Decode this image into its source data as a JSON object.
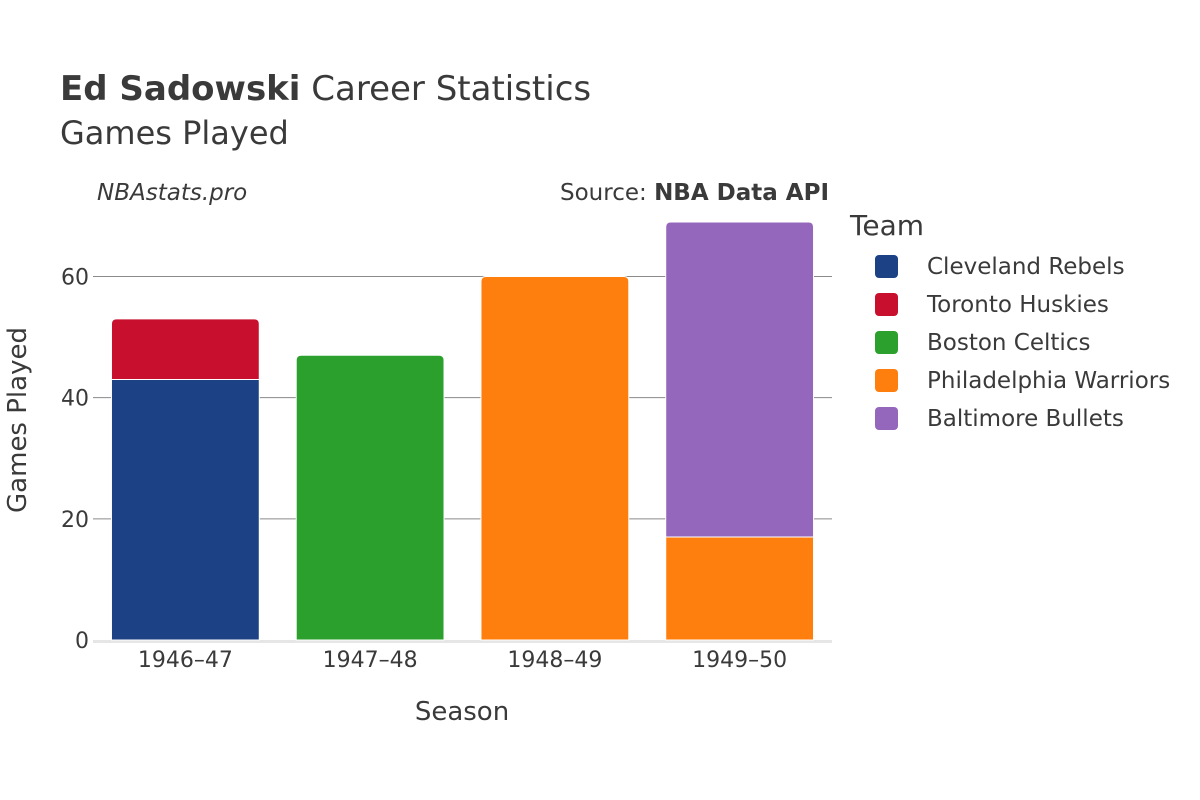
{
  "header": {
    "player_name": "Ed Sadowski",
    "title_rest": " Career Statistics",
    "subtitle": "Games Played"
  },
  "credits": {
    "site": "NBAstats.pro",
    "source_prefix": "Source: ",
    "source_name": "NBA Data API"
  },
  "legend": {
    "title": "Team"
  },
  "chart_data": {
    "type": "bar",
    "stacked": true,
    "categories": [
      "1946–47",
      "1947–48",
      "1948–49",
      "1949–50"
    ],
    "xlabel": "Season",
    "ylabel": "Games Played",
    "ylim": [
      0,
      69
    ],
    "yticks": [
      0,
      20,
      40,
      60
    ],
    "grid": true,
    "legend_position": "right",
    "series": [
      {
        "name": "Cleveland Rebels",
        "color": "#1c4285",
        "values": [
          43,
          0,
          0,
          0
        ]
      },
      {
        "name": "Toronto Huskies",
        "color": "#c8102e",
        "values": [
          10,
          0,
          0,
          0
        ]
      },
      {
        "name": "Boston Celtics",
        "color": "#2ca02c",
        "values": [
          0,
          47,
          0,
          0
        ]
      },
      {
        "name": "Philadelphia Warriors",
        "color": "#ff7f0e",
        "values": [
          0,
          0,
          60,
          17
        ]
      },
      {
        "name": "Baltimore Bullets",
        "color": "#9467bd",
        "values": [
          0,
          0,
          0,
          52
        ]
      }
    ]
  }
}
